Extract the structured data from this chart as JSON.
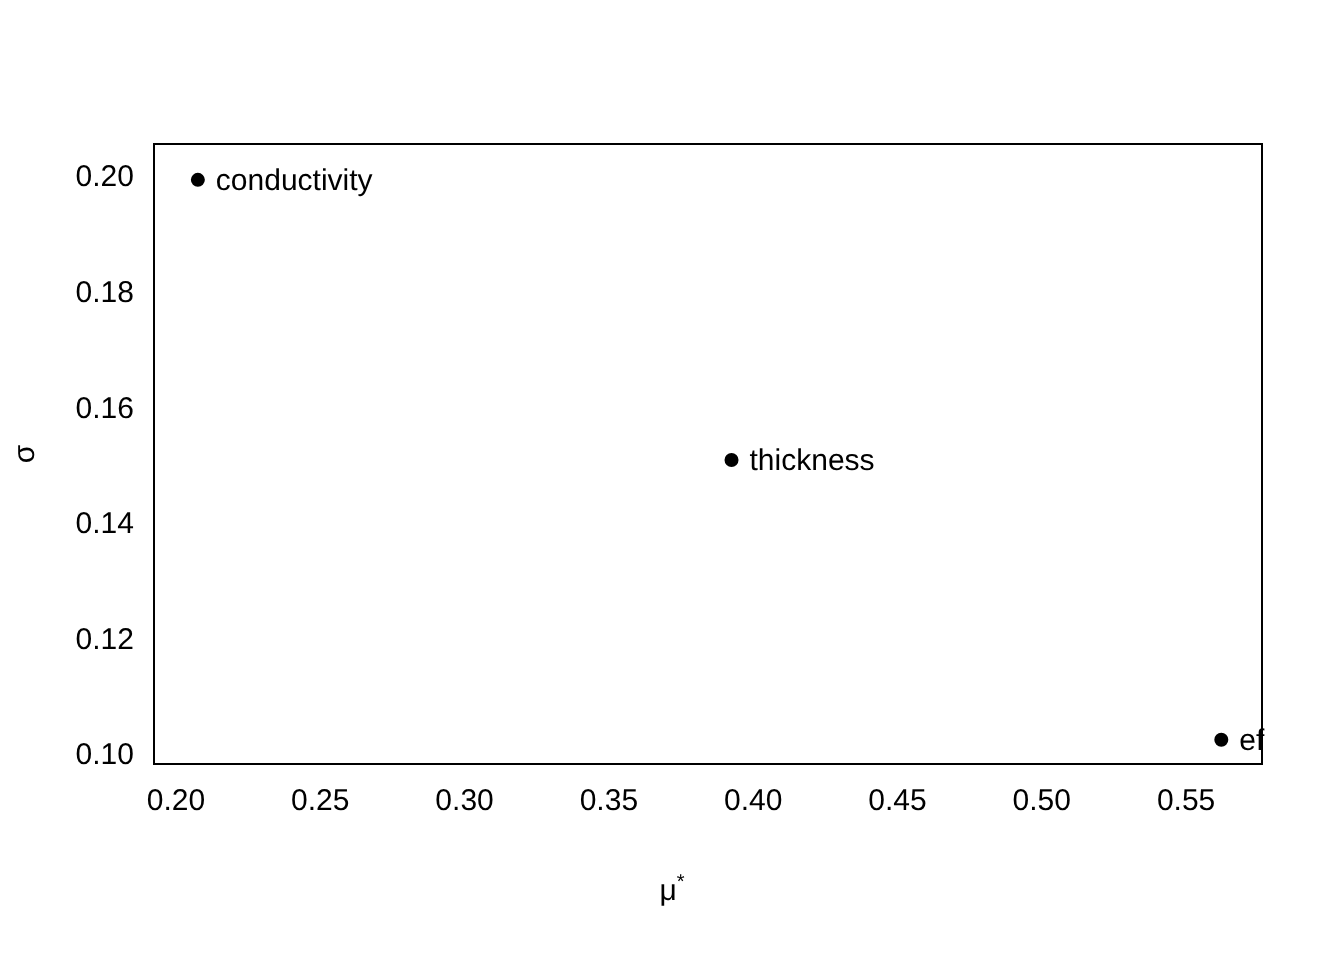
{
  "chart_data": {
    "type": "scatter",
    "xlabel": "μ$^{*}$",
    "ylabel": "σ",
    "series": [
      {
        "color": "#000000",
        "x": [
          0.2076,
          0.3925,
          0.5622
        ],
        "values": [
          0.1997,
          0.1512,
          0.1028
        ]
      }
    ],
    "marker": "circle",
    "xlim": [
      0.1924,
      0.5763
    ],
    "xticks": [
      {
        "value": 0.2,
        "label": "0.20"
      },
      0.25,
      {
        "value": 0.3,
        "label": "0.30"
      },
      0.35,
      {
        "value": 0.4,
        "label": "0.40"
      },
      0.45,
      {
        "value": 0.5,
        "label": "0.50"
      },
      0.55
    ],
    "ylim": [
      0.0986,
      0.2059
    ],
    "yticks": [
      {
        "value": 0.1,
        "label": "0.10"
      },
      0.12,
      0.14,
      0.16,
      0.18,
      {
        "value": 0.2,
        "label": "0.20"
      }
    ],
    "annotations": [
      {
        "text": "conductivity",
        "x": 0.2076,
        "y": 0.1997
      },
      {
        "text": "thickness",
        "x": 0.3925,
        "y": 0.1512
      },
      {
        "text": "ef",
        "x": 0.5622,
        "y": 0.1028
      }
    ]
  }
}
